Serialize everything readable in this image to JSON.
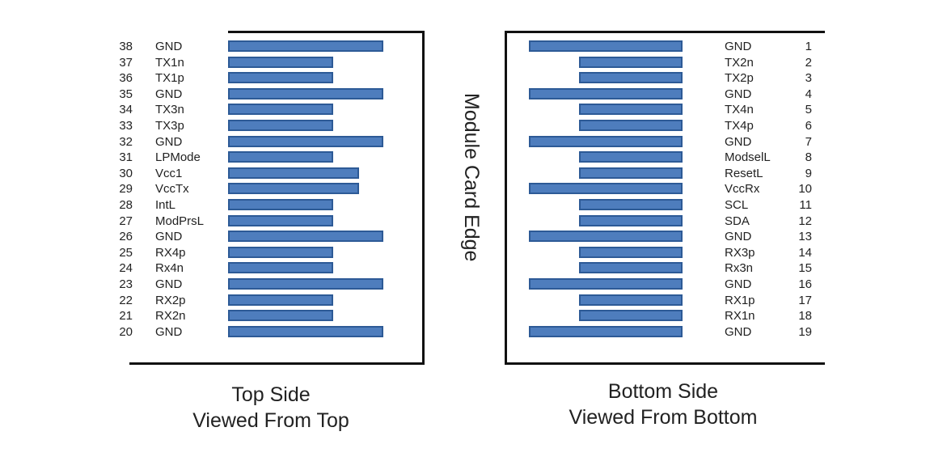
{
  "top_side": {
    "caption_line1": "Top Side",
    "caption_line2": "Viewed From Top",
    "pins": [
      {
        "num": "38",
        "label": "GND",
        "pad": "long"
      },
      {
        "num": "37",
        "label": "TX1n",
        "pad": "short"
      },
      {
        "num": "36",
        "label": "TX1p",
        "pad": "short"
      },
      {
        "num": "35",
        "label": "GND",
        "pad": "long"
      },
      {
        "num": "34",
        "label": "TX3n",
        "pad": "short"
      },
      {
        "num": "33",
        "label": "TX3p",
        "pad": "short"
      },
      {
        "num": "32",
        "label": "GND",
        "pad": "long"
      },
      {
        "num": "31",
        "label": "LPMode",
        "pad": "short"
      },
      {
        "num": "30",
        "label": "Vcc1",
        "pad": "medium"
      },
      {
        "num": "29",
        "label": "VccTx",
        "pad": "medium"
      },
      {
        "num": "28",
        "label": "IntL",
        "pad": "short"
      },
      {
        "num": "27",
        "label": "ModPrsL",
        "pad": "short"
      },
      {
        "num": "26",
        "label": "GND",
        "pad": "long"
      },
      {
        "num": "25",
        "label": "RX4p",
        "pad": "short"
      },
      {
        "num": "24",
        "label": "Rx4n",
        "pad": "short"
      },
      {
        "num": "23",
        "label": "GND",
        "pad": "long"
      },
      {
        "num": "22",
        "label": "RX2p",
        "pad": "short"
      },
      {
        "num": "21",
        "label": "RX2n",
        "pad": "short"
      },
      {
        "num": "20",
        "label": "GND",
        "pad": "long"
      }
    ]
  },
  "bottom_side": {
    "caption_line1": "Bottom Side",
    "caption_line2": "Viewed From Bottom",
    "pins": [
      {
        "num": "1",
        "label": "GND",
        "pad": "long"
      },
      {
        "num": "2",
        "label": "TX2n",
        "pad": "short"
      },
      {
        "num": "3",
        "label": "TX2p",
        "pad": "short"
      },
      {
        "num": "4",
        "label": "GND",
        "pad": "long"
      },
      {
        "num": "5",
        "label": "TX4n",
        "pad": "short"
      },
      {
        "num": "6",
        "label": "TX4p",
        "pad": "short"
      },
      {
        "num": "7",
        "label": "GND",
        "pad": "long"
      },
      {
        "num": "8",
        "label": "ModselL",
        "pad": "short"
      },
      {
        "num": "9",
        "label": "ResetL",
        "pad": "short"
      },
      {
        "num": "10",
        "label": "VccRx",
        "pad": "long"
      },
      {
        "num": "11",
        "label": "SCL",
        "pad": "short"
      },
      {
        "num": "12",
        "label": "SDA",
        "pad": "short"
      },
      {
        "num": "13",
        "label": "GND",
        "pad": "long"
      },
      {
        "num": "14",
        "label": "RX3p",
        "pad": "short"
      },
      {
        "num": "15",
        "label": "Rx3n",
        "pad": "short"
      },
      {
        "num": "16",
        "label": "GND",
        "pad": "long"
      },
      {
        "num": "17",
        "label": "RX1p",
        "pad": "short"
      },
      {
        "num": "18",
        "label": "RX1n",
        "pad": "short"
      },
      {
        "num": "19",
        "label": "GND",
        "pad": "long"
      }
    ]
  },
  "edge_label": "Module Card Edge",
  "colors": {
    "pad_fill": "#4e7dbd",
    "pad_border": "#2d5a96",
    "frame": "#111111"
  }
}
